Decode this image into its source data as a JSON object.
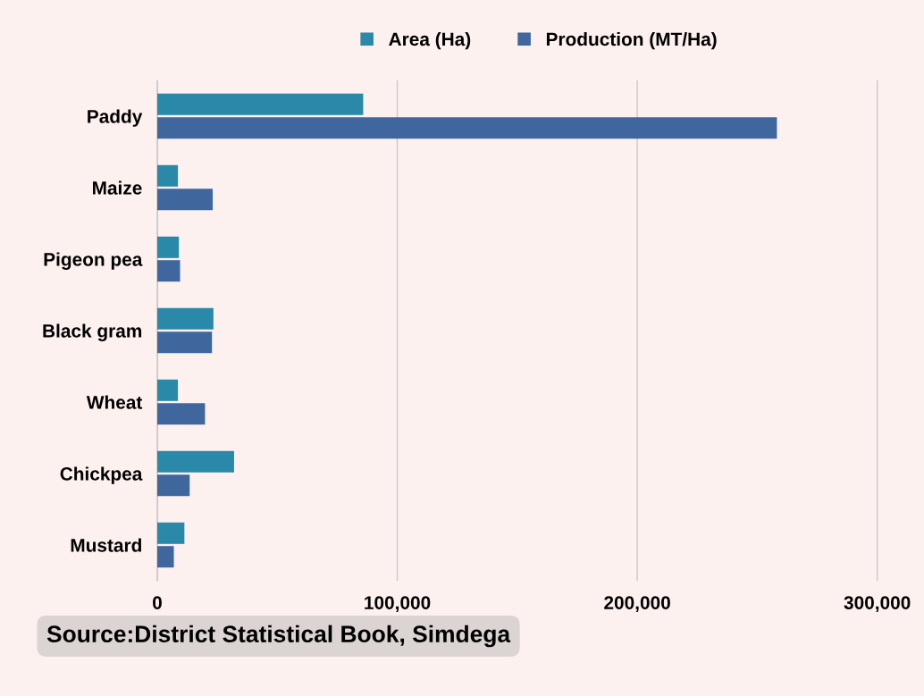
{
  "chart_data": {
    "type": "bar",
    "orientation": "horizontal",
    "categories": [
      "Paddy",
      "Maize",
      "Pigeon pea",
      "Black gram",
      "Wheat",
      "Chickpea",
      "Mustard"
    ],
    "series": [
      {
        "name": "Area (Ha)",
        "color": "#2a88a8",
        "values": [
          85800,
          8600,
          9000,
          23400,
          8600,
          32000,
          11300
        ]
      },
      {
        "name": "Production (MT/Ha)",
        "color": "#3f679e",
        "values": [
          258200,
          23100,
          9500,
          22800,
          19900,
          13500,
          6900
        ]
      }
    ],
    "xlim": [
      0,
      318000
    ],
    "xticks": [
      {
        "value": 0,
        "label": "0"
      },
      {
        "value": 100000,
        "label": "100,000"
      },
      {
        "value": 200000,
        "label": "200,000"
      },
      {
        "value": 300000,
        "label": "300,000"
      }
    ],
    "grid": "x",
    "legend": "top",
    "annotations": [
      "Source:District Statistical Book, Simdega"
    ]
  }
}
